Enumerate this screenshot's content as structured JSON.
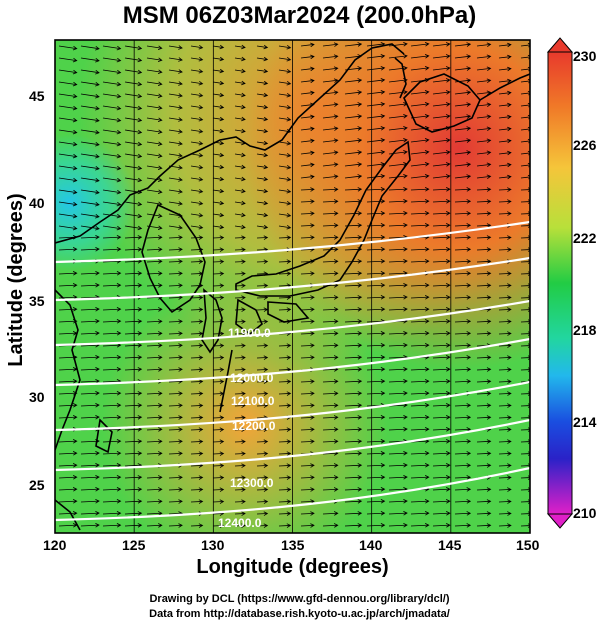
{
  "title": "MSM 06Z03Mar2024 (200.0hPa)",
  "axes": {
    "xlabel": "Longitude (degrees)",
    "ylabel": "Latitude  (degrees)",
    "xticks": [
      "120",
      "125",
      "130",
      "135",
      "140",
      "145",
      "150"
    ],
    "yticks": [
      "45",
      "40",
      "35",
      "30",
      "25"
    ],
    "xlim": [
      120,
      150
    ],
    "ylim": [
      22.5,
      48
    ]
  },
  "colorbar": {
    "ticks": [
      "230",
      "226",
      "222",
      "218",
      "214",
      "210"
    ],
    "min": 210,
    "max": 230
  },
  "contours": [
    {
      "label": "11900.0",
      "value": 11900
    },
    {
      "label": "12000.0",
      "value": 12000
    },
    {
      "label": "12100.0",
      "value": 12100
    },
    {
      "label": "12200.0",
      "value": 12200
    },
    {
      "label": "12300.0",
      "value": 12300
    },
    {
      "label": "12400.0",
      "value": 12400
    }
  ],
  "credits": {
    "line1": "Drawing by DCL (https://www.gfd-dennou.org/library/dcl/)",
    "line2": "Data from http://database.rish.kyoto-u.ac.jp/arch/jmadata/"
  },
  "colors": {
    "warm": "#e84a28",
    "mid": "#cfe030",
    "green": "#22cc44",
    "cool": "#22c8e6",
    "contour": "#ffffff"
  }
}
